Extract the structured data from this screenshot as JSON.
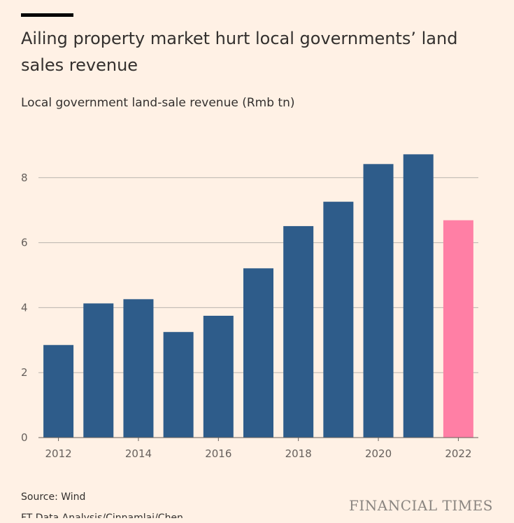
{
  "header": {
    "title": "Ailing property market hurt local governments’ land sales revenue",
    "subtitle": "Local government land-sale revenue (Rmb tn)"
  },
  "footer": {
    "source": "Source: Wind",
    "credit": "FT Data Analysis/Cinnamlai/Chen...",
    "logo": "FINANCIAL TIMES"
  },
  "colors": {
    "bar": "#2e5c8a",
    "highlight": "#ff7fa5",
    "grid": "#b9b4ae",
    "background": "#fff1e5"
  },
  "chart_data": {
    "type": "bar",
    "categories": [
      "2012",
      "2013",
      "2014",
      "2015",
      "2016",
      "2017",
      "2018",
      "2019",
      "2020",
      "2021",
      "2022"
    ],
    "values": [
      2.85,
      4.13,
      4.26,
      3.25,
      3.75,
      5.21,
      6.51,
      7.26,
      8.42,
      8.72,
      6.69
    ],
    "highlight_index": 10,
    "x_tick_labels": [
      "2012",
      "2014",
      "2016",
      "2018",
      "2020",
      "2022"
    ],
    "y_ticks": [
      0,
      2,
      4,
      6,
      8
    ],
    "ylim": [
      0,
      9.5
    ],
    "grid": true,
    "title": "Ailing property market hurt local governments’ land sales revenue",
    "ylabel": "Local government land-sale revenue (Rmb tn)",
    "xlabel": ""
  }
}
